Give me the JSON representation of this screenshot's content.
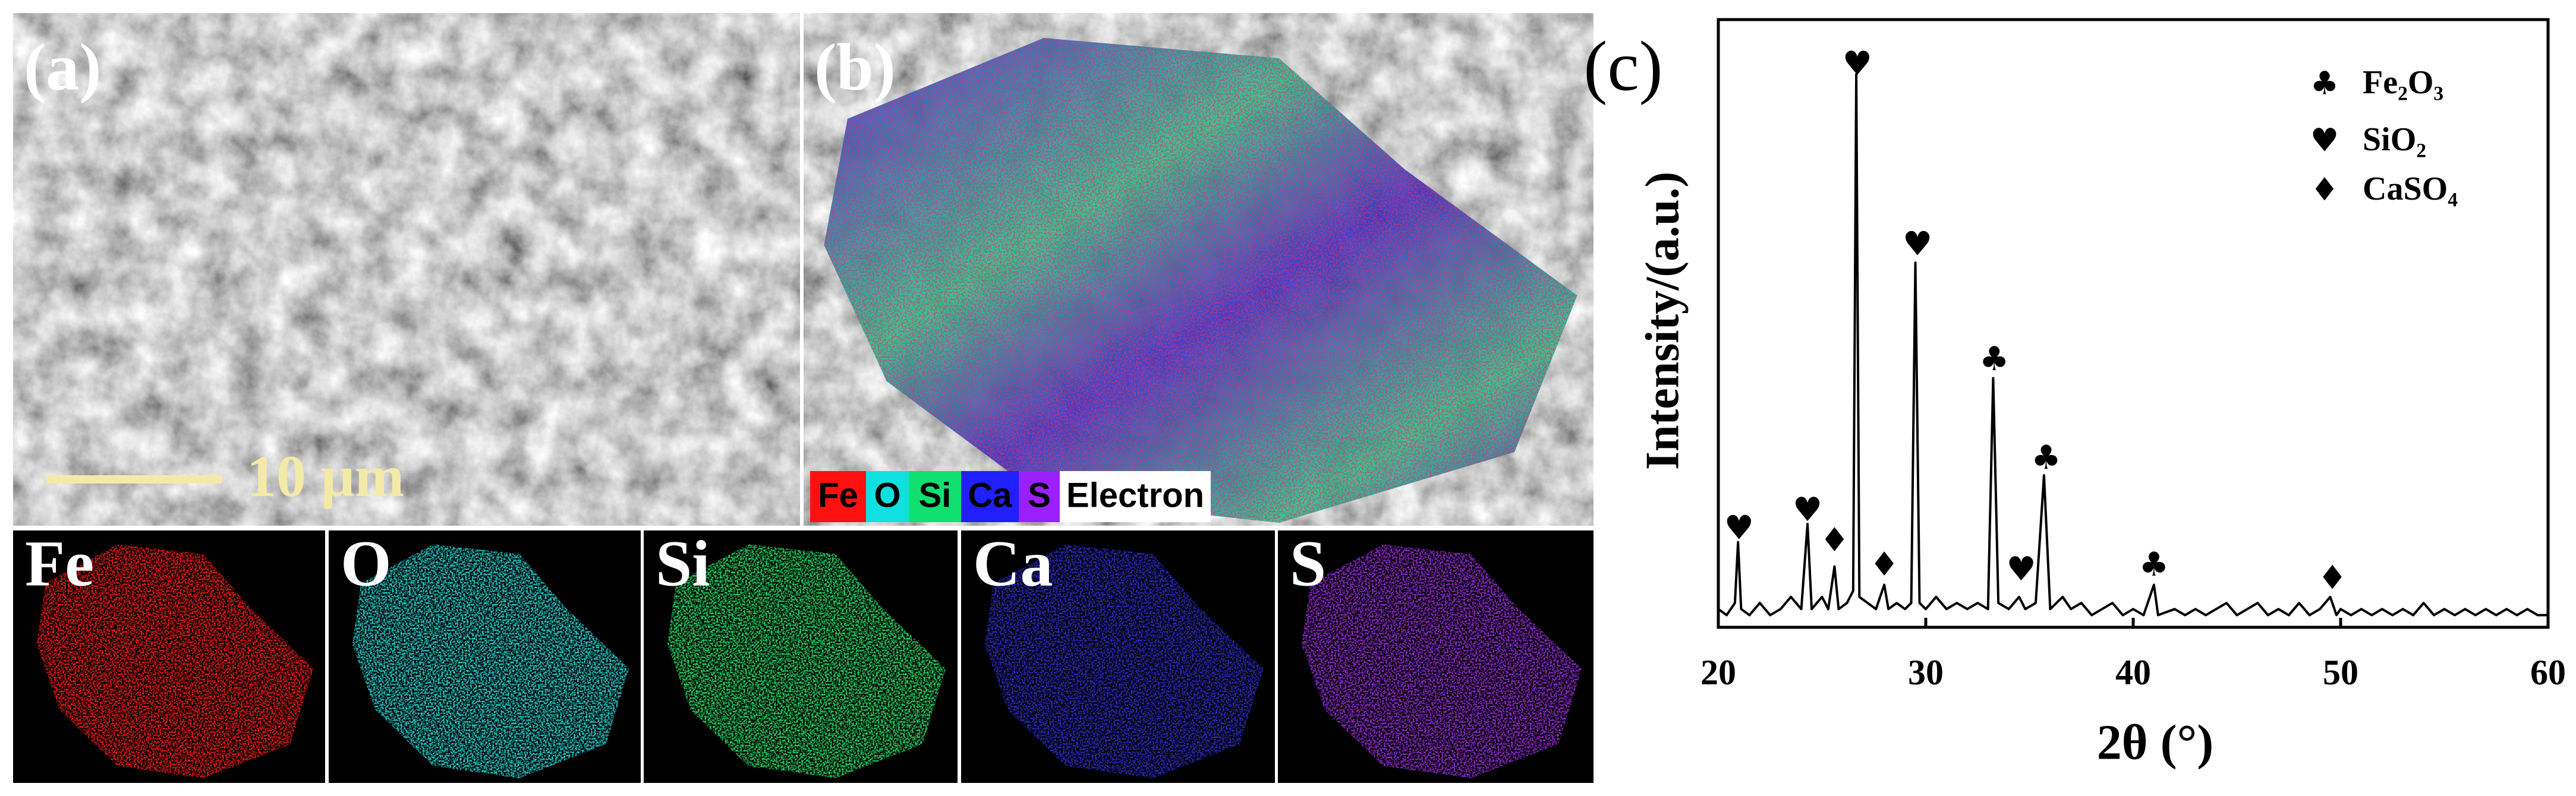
{
  "panels": {
    "a": {
      "label": "(a)",
      "scale_bar": "10 μm"
    },
    "b": {
      "label": "(b)",
      "legend": [
        {
          "name": "Fe",
          "color": "#ff1010"
        },
        {
          "name": "O",
          "color": "#10e0e0"
        },
        {
          "name": "Si",
          "color": "#10e070"
        },
        {
          "name": "Ca",
          "color": "#2020ff"
        },
        {
          "name": "S",
          "color": "#9a20ff"
        },
        {
          "name": "Electron",
          "color": "#ffffff"
        }
      ]
    },
    "maps": [
      {
        "label": "Fe",
        "color": "#e01818"
      },
      {
        "label": "O",
        "color": "#20c8c8"
      },
      {
        "label": "Si",
        "color": "#20d060"
      },
      {
        "label": "Ca",
        "color": "#2828b8"
      },
      {
        "label": "S",
        "color": "#8a28c8"
      }
    ]
  },
  "chart_data": {
    "type": "line",
    "label": "(c)",
    "xlabel": "2θ (°)",
    "ylabel": "Intensity/(a.u.)",
    "xlim": [
      20,
      60
    ],
    "xticks": [
      20,
      30,
      40,
      50,
      60
    ],
    "ylim": [
      0,
      100
    ],
    "color": "#000000",
    "x": [
      20,
      20.4,
      20.8,
      20.95,
      21.1,
      21.5,
      22,
      22.5,
      23,
      23.5,
      24,
      24.3,
      24.5,
      25,
      25.3,
      25.6,
      25.8,
      26.2,
      26.5,
      26.65,
      26.8,
      27.2,
      27.6,
      28,
      28.2,
      28.6,
      29,
      29.3,
      29.5,
      29.7,
      30,
      30.5,
      31,
      31.5,
      32,
      32.5,
      33,
      33.25,
      33.5,
      34,
      34.5,
      34.8,
      35.3,
      35.7,
      36,
      36.6,
      37,
      37.5,
      38,
      38.5,
      39,
      39.5,
      40,
      40.5,
      41,
      41.2,
      42,
      42.5,
      43,
      43.5,
      44,
      44.5,
      45,
      45.5,
      46,
      46.5,
      47,
      47.5,
      48,
      48.5,
      49,
      49.5,
      49.8,
      50,
      50.5,
      51,
      51.5,
      52,
      52.5,
      53,
      53.5,
      54,
      54.5,
      55,
      55.5,
      56,
      56.5,
      57,
      57.5,
      58,
      58.5,
      59,
      59.5,
      60
    ],
    "values": [
      3,
      2,
      4,
      14,
      3,
      2,
      4,
      2,
      3,
      5,
      3,
      17,
      3,
      5,
      3,
      10,
      3,
      4,
      6,
      91,
      5,
      4,
      3,
      7,
      3,
      4,
      3,
      4,
      60,
      4,
      3,
      5,
      3,
      4,
      3,
      4,
      3,
      41,
      4,
      3,
      5,
      3,
      4,
      25,
      3,
      5,
      3,
      4,
      2,
      3,
      4,
      2,
      3,
      2,
      7,
      2,
      3,
      2,
      3,
      2,
      3,
      4,
      2,
      3,
      4,
      2,
      3,
      2,
      4,
      2,
      3,
      5,
      2,
      3,
      2,
      3,
      2,
      3,
      2,
      3,
      2,
      4,
      2,
      3,
      2,
      3,
      2,
      3,
      2,
      3,
      2,
      3,
      2,
      2
    ],
    "series": [
      {
        "name": "Fe₂O₃",
        "symbol": "♣",
        "x": [
          33.3,
          35.8,
          41.0
        ],
        "values": [
          43.8,
          27.6,
          10
        ]
      },
      {
        "name": "SiO₂",
        "symbol": "♥",
        "x": [
          21.0,
          24.3,
          26.7,
          29.6,
          34.6
        ],
        "values": [
          16,
          19,
          92.4,
          62.7,
          9.2
        ]
      },
      {
        "name": "CaSO₄",
        "symbol": "♦",
        "x": [
          25.6,
          28.0,
          49.6
        ],
        "values": [
          14,
          10,
          7.8
        ]
      }
    ]
  }
}
